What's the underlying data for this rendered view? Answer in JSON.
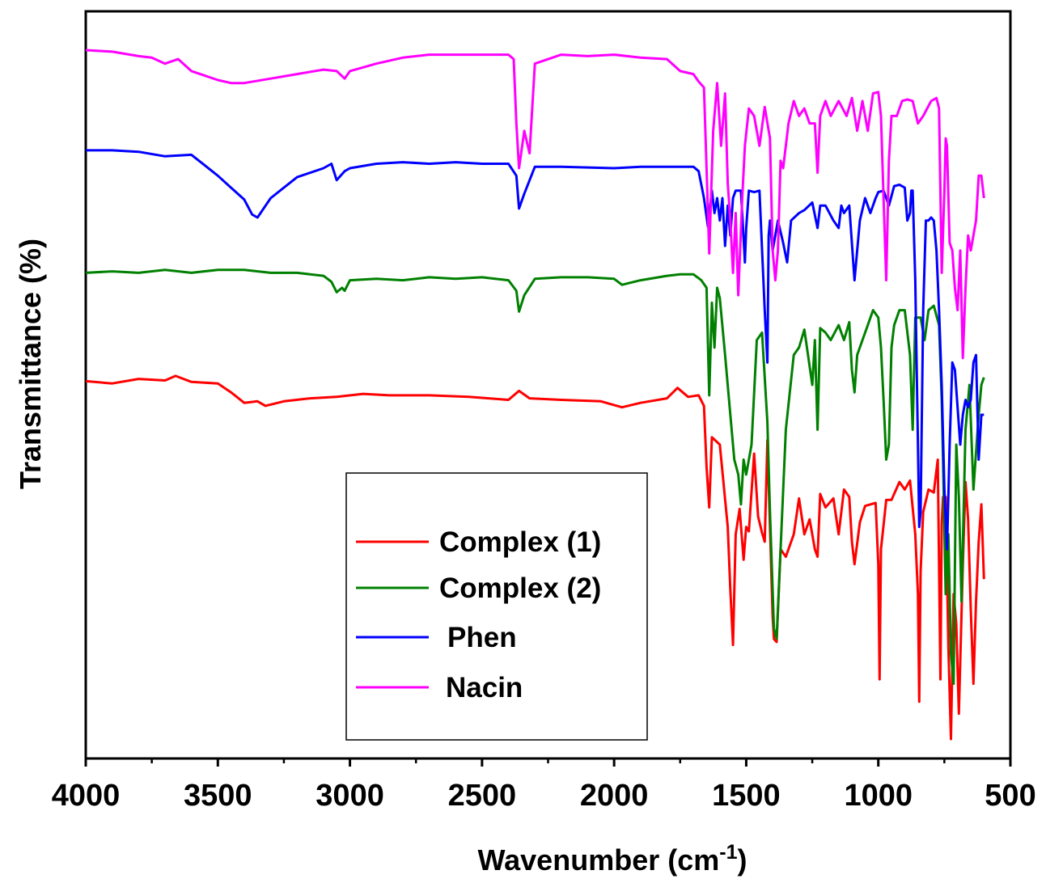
{
  "chart_data": {
    "type": "line",
    "title": "",
    "xlabel": "Wavenumber (cm",
    "xlabel_superscript": "-1",
    "xlabel_close": ")",
    "ylabel": "Transmittance (%)",
    "xlim": [
      4000,
      500
    ],
    "ylim": [
      0,
      100
    ],
    "y_ticks_shown": false,
    "x_major_ticks": [
      4000,
      3500,
      3000,
      2500,
      2000,
      1500,
      1000,
      500
    ],
    "x_tick_labels": [
      "4000",
      "3500",
      "3000",
      "2500",
      "2000",
      "1500",
      "1000",
      "500"
    ],
    "x_minor_ticks": [
      3750,
      3250,
      2750,
      2250,
      1750,
      1250,
      750
    ],
    "grid": false,
    "legend": {
      "position": "bottom-center",
      "entries": [
        "Complex (1)",
        "Complex (2)",
        "Phen",
        "Nacin"
      ]
    },
    "series": [
      {
        "name": "Complex (1)",
        "color": "#ff0000",
        "x": [
          4000,
          3900,
          3800,
          3700,
          3660,
          3600,
          3500,
          3450,
          3400,
          3350,
          3320,
          3250,
          3150,
          3050,
          2950,
          2850,
          2700,
          2550,
          2400,
          2360,
          2320,
          2200,
          2050,
          1970,
          1900,
          1800,
          1760,
          1720,
          1680,
          1660,
          1650,
          1640,
          1630,
          1600,
          1570,
          1560,
          1550,
          1540,
          1525,
          1510,
          1500,
          1490,
          1470,
          1455,
          1440,
          1430,
          1420,
          1400,
          1395,
          1385,
          1370,
          1350,
          1320,
          1300,
          1280,
          1260,
          1240,
          1230,
          1220,
          1200,
          1170,
          1150,
          1130,
          1110,
          1100,
          1090,
          1070,
          1050,
          1030,
          1010,
          1000,
          995,
          990,
          970,
          950,
          920,
          900,
          880,
          860,
          850,
          845,
          840,
          830,
          810,
          790,
          775,
          765,
          760,
          755,
          745,
          735,
          725,
          715,
          705,
          695,
          680,
          670,
          660,
          650,
          640,
          630,
          620,
          610,
          600
        ],
        "y": [
          50.5,
          50.2,
          50.8,
          50.6,
          51.2,
          50.4,
          50.2,
          49.0,
          47.6,
          47.8,
          47.2,
          47.8,
          48.2,
          48.4,
          48.8,
          48.6,
          48.6,
          48.4,
          48.0,
          49.2,
          48.2,
          48.0,
          47.8,
          47.0,
          47.6,
          48.2,
          49.6,
          48.4,
          48.6,
          47.2,
          39.0,
          33.6,
          43.0,
          42.0,
          31.0,
          22.6,
          15.2,
          30.0,
          33.4,
          26.6,
          31.0,
          30.4,
          40.8,
          32.4,
          30.2,
          29.0,
          42.6,
          19.0,
          16.0,
          15.6,
          28.0,
          27.0,
          30.0,
          34.8,
          30.0,
          32.0,
          28.0,
          27.0,
          35.4,
          33.6,
          34.8,
          30.0,
          36.0,
          35.0,
          29.0,
          26.0,
          31.6,
          33.8,
          34.0,
          34.2,
          26.0,
          10.6,
          28.0,
          34.6,
          34.6,
          37.0,
          36.0,
          37.2,
          30.0,
          22.0,
          7.6,
          25.0,
          33.0,
          36.0,
          35.6,
          40.0,
          10.6,
          31.4,
          35.0,
          35.0,
          15.0,
          2.6,
          22.0,
          18.0,
          6.0,
          26.0,
          37.0,
          32.0,
          20.0,
          10.0,
          21.0,
          29.0,
          34.0,
          24.0
        ]
      },
      {
        "name": "Complex (2)",
        "color": "#008000",
        "x": [
          4000,
          3900,
          3800,
          3700,
          3600,
          3500,
          3400,
          3300,
          3200,
          3100,
          3070,
          3050,
          3030,
          3020,
          3000,
          2900,
          2800,
          2700,
          2600,
          2500,
          2400,
          2370,
          2360,
          2340,
          2300,
          2200,
          2100,
          2000,
          1970,
          1900,
          1800,
          1750,
          1700,
          1670,
          1650,
          1640,
          1630,
          1620,
          1610,
          1600,
          1580,
          1560,
          1545,
          1530,
          1520,
          1510,
          1500,
          1480,
          1460,
          1440,
          1420,
          1410,
          1395,
          1385,
          1370,
          1350,
          1320,
          1300,
          1280,
          1270,
          1250,
          1240,
          1230,
          1220,
          1200,
          1180,
          1150,
          1130,
          1110,
          1100,
          1090,
          1080,
          1060,
          1040,
          1020,
          1000,
          990,
          980,
          970,
          960,
          950,
          940,
          920,
          900,
          880,
          870,
          860,
          840,
          825,
          810,
          790,
          770,
          760,
          755,
          745,
          735,
          725,
          715,
          705,
          695,
          685,
          670,
          655,
          640,
          620,
          610,
          600
        ],
        "y": [
          65.0,
          65.2,
          65.0,
          65.4,
          65.0,
          65.4,
          65.4,
          65.0,
          65.0,
          64.6,
          63.8,
          62.4,
          63.0,
          62.6,
          64.0,
          64.2,
          64.0,
          64.4,
          64.2,
          64.4,
          64.0,
          62.6,
          59.8,
          62.0,
          64.2,
          64.4,
          64.4,
          64.2,
          63.4,
          64.0,
          64.6,
          64.8,
          64.8,
          64.0,
          63.0,
          48.6,
          61.0,
          55.0,
          63.0,
          61.6,
          54.0,
          46.0,
          40.0,
          38.0,
          34.0,
          40.0,
          38.0,
          42.0,
          56.0,
          57.0,
          45.0,
          33.0,
          17.4,
          16.0,
          28.0,
          44.0,
          54.0,
          55.0,
          57.4,
          55.0,
          50.0,
          56.0,
          44.0,
          57.6,
          57.0,
          56.0,
          58.0,
          56.0,
          58.4,
          52.0,
          49.0,
          54.0,
          56.0,
          58.0,
          60.0,
          59.0,
          55.0,
          48.0,
          40.0,
          42.0,
          55.0,
          58.0,
          60.0,
          60.0,
          54.0,
          44.0,
          59.0,
          59.0,
          56.0,
          60.0,
          60.6,
          58.0,
          48.0,
          40.0,
          22.0,
          30.0,
          14.0,
          10.0,
          42.0,
          35.0,
          21.0,
          44.0,
          50.0,
          36.0,
          46.0,
          50.0,
          51.0
        ]
      },
      {
        "name": "Phen",
        "color": "#0000ff",
        "x": [
          4000,
          3900,
          3800,
          3700,
          3600,
          3500,
          3450,
          3400,
          3370,
          3350,
          3300,
          3250,
          3200,
          3100,
          3070,
          3050,
          3020,
          3000,
          2900,
          2800,
          2700,
          2600,
          2500,
          2400,
          2370,
          2360,
          2340,
          2300,
          2200,
          2000,
          1900,
          1800,
          1700,
          1680,
          1660,
          1645,
          1630,
          1620,
          1610,
          1600,
          1590,
          1580,
          1570,
          1560,
          1550,
          1540,
          1520,
          1505,
          1500,
          1490,
          1470,
          1450,
          1430,
          1420,
          1415,
          1410,
          1400,
          1380,
          1360,
          1345,
          1330,
          1300,
          1280,
          1250,
          1230,
          1220,
          1200,
          1170,
          1150,
          1140,
          1130,
          1110,
          1090,
          1070,
          1050,
          1030,
          1010,
          1000,
          980,
          960,
          940,
          920,
          900,
          890,
          880,
          875,
          870,
          860,
          850,
          845,
          840,
          830,
          820,
          810,
          800,
          790,
          780,
          770,
          760,
          750,
          740,
          735,
          730,
          720,
          710,
          700,
          690,
          680,
          670,
          660,
          650,
          640,
          630,
          620,
          610,
          600
        ],
        "y": [
          81.4,
          81.4,
          81.2,
          80.6,
          80.8,
          78.0,
          76.4,
          74.8,
          72.8,
          72.4,
          75.0,
          76.4,
          77.8,
          79.0,
          79.6,
          77.4,
          78.6,
          79.0,
          79.6,
          79.8,
          79.6,
          79.8,
          79.6,
          79.6,
          78.0,
          73.6,
          75.6,
          79.2,
          79.2,
          79.0,
          79.2,
          79.2,
          79.2,
          78.6,
          75.0,
          71.2,
          76.0,
          73.0,
          75.0,
          72.0,
          75.0,
          68.6,
          74.0,
          70.0,
          75.0,
          76.0,
          76.0,
          66.4,
          71.0,
          76.0,
          75.8,
          76.0,
          60.0,
          53.0,
          70.0,
          72.0,
          68.0,
          72.0,
          69.0,
          66.4,
          72.0,
          73.0,
          73.4,
          74.4,
          71.0,
          74.0,
          74.0,
          72.0,
          71.0,
          74.0,
          73.0,
          74.0,
          64.0,
          72.0,
          75.0,
          73.0,
          75.0,
          75.8,
          76.0,
          74.0,
          76.6,
          76.8,
          76.4,
          72.0,
          73.0,
          76.0,
          76.0,
          64.0,
          42.0,
          31.0,
          33.0,
          60.0,
          72.0,
          72.0,
          72.4,
          72.0,
          68.0,
          60.0,
          50.0,
          36.0,
          28.0,
          35.0,
          42.0,
          53.0,
          52.0,
          47.0,
          42.0,
          46.0,
          48.0,
          47.0,
          48.0,
          53.0,
          54.0,
          40.0,
          46.0,
          46.0
        ]
      },
      {
        "name": "Nacin",
        "color": "#ff00ff",
        "x": [
          4000,
          3900,
          3800,
          3750,
          3700,
          3650,
          3600,
          3500,
          3450,
          3400,
          3300,
          3200,
          3100,
          3050,
          3020,
          3000,
          2900,
          2800,
          2700,
          2600,
          2500,
          2400,
          2380,
          2370,
          2360,
          2340,
          2320,
          2300,
          2200,
          2100,
          2000,
          1900,
          1800,
          1750,
          1700,
          1680,
          1660,
          1650,
          1640,
          1625,
          1610,
          1595,
          1580,
          1570,
          1560,
          1550,
          1540,
          1530,
          1515,
          1505,
          1490,
          1470,
          1450,
          1430,
          1410,
          1400,
          1390,
          1380,
          1370,
          1360,
          1340,
          1320,
          1300,
          1280,
          1260,
          1240,
          1230,
          1220,
          1200,
          1180,
          1150,
          1120,
          1100,
          1080,
          1060,
          1040,
          1020,
          1000,
          990,
          980,
          970,
          960,
          950,
          930,
          910,
          890,
          870,
          850,
          830,
          800,
          780,
          770,
          760,
          750,
          745,
          740,
          730,
          720,
          710,
          700,
          690,
          680,
          670,
          660,
          650,
          640,
          630,
          620,
          610,
          600
        ],
        "y": [
          94.8,
          94.6,
          94.0,
          93.8,
          93.0,
          93.6,
          92.0,
          90.8,
          90.4,
          90.4,
          91.0,
          91.6,
          92.2,
          92.0,
          91.0,
          92.0,
          93.0,
          93.8,
          94.2,
          94.2,
          94.2,
          94.2,
          93.6,
          85.0,
          79.0,
          84.0,
          81.0,
          93.0,
          94.2,
          94.0,
          94.2,
          93.8,
          93.6,
          92.0,
          91.6,
          90.6,
          89.8,
          79.0,
          67.6,
          84.0,
          90.4,
          82.0,
          89.0,
          77.0,
          72.0,
          65.0,
          73.0,
          62.0,
          75.0,
          82.0,
          87.0,
          86.0,
          82.0,
          87.2,
          83.0,
          68.0,
          64.0,
          68.0,
          80.0,
          79.0,
          85.0,
          88.0,
          86.0,
          87.0,
          85.0,
          85.0,
          78.4,
          86.0,
          88.0,
          86.0,
          88.0,
          86.0,
          88.4,
          84.0,
          88.0,
          84.0,
          89.0,
          89.2,
          86.0,
          75.0,
          64.0,
          80.0,
          86.0,
          86.0,
          88.0,
          88.2,
          88.0,
          85.0,
          86.0,
          88.0,
          88.4,
          87.0,
          65.0,
          76.0,
          83.0,
          82.0,
          69.0,
          68.0,
          63.0,
          60.0,
          68.0,
          53.6,
          63.0,
          70.0,
          68.0,
          70.0,
          72.0,
          78.0,
          78.0,
          75.0
        ]
      }
    ]
  }
}
